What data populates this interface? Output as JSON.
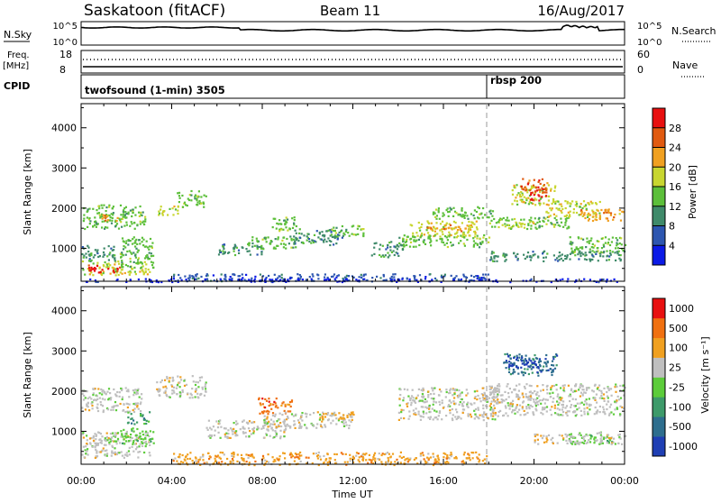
{
  "header": {
    "station": "Saskatoon (fitACF)",
    "beam": "Beam 11",
    "date": "16/Aug/2017"
  },
  "noise_panel": {
    "left_label": "N.Sky",
    "left_ticks": [
      "10^5",
      "10^0"
    ],
    "right_ticks": [
      "10^5",
      "10^0"
    ],
    "right_label": "N.Search"
  },
  "freq_panel": {
    "left_label_1": "Freq.",
    "left_label_2": "[MHz]",
    "left_ticks": [
      "18",
      "8"
    ],
    "right_ticks": [
      "60",
      "0"
    ],
    "right_label": "Nave"
  },
  "cpid_panel": {
    "label": "CPID",
    "entries": [
      {
        "time_hours": 0.0,
        "text": "twofsound (1-min) 3505"
      },
      {
        "time_hours": 18.0,
        "text": "rbsp 200"
      }
    ]
  },
  "x_axis": {
    "label": "Time UT",
    "range_hours": [
      0,
      24
    ],
    "tick_labels": [
      "00:00",
      "04:00",
      "08:00",
      "12:00",
      "16:00",
      "20:00",
      "00:00"
    ]
  },
  "y_axis": {
    "label": "Slant Range [km]",
    "range_km": [
      180,
      4600
    ],
    "tick_labels": [
      "1000",
      "2000",
      "3000",
      "4000"
    ]
  },
  "power_colorbar": {
    "label": "Power [dB]",
    "ticks": [
      "4",
      "8",
      "12",
      "16",
      "20",
      "24",
      "28"
    ],
    "colors": [
      "#0b1ae6",
      "#2d56b0",
      "#3f8a6a",
      "#5cbf3a",
      "#c8d630",
      "#f0a020",
      "#e05a10",
      "#e81010"
    ]
  },
  "velocity_colorbar": {
    "label": "Velocity [m s⁻¹]",
    "ticks": [
      "1000",
      "500",
      "100",
      "25",
      "-25",
      "-100",
      "-500",
      "-1000"
    ],
    "colors": [
      "#1f3fb4",
      "#2e6e8e",
      "#3d9a6a",
      "#5ccc3a",
      "#bfbfbf",
      "#f0a020",
      "#f07010",
      "#e81010"
    ]
  },
  "chart_data": [
    {
      "type": "heatmap",
      "name": "power",
      "xlabel": "Time UT",
      "ylabel": "Slant Range [km]",
      "colorbar_label": "Power [dB]",
      "ylim": [
        180,
        4600
      ],
      "xlim_hours": [
        0,
        24
      ],
      "regions": [
        {
          "t": [
            0.0,
            2.8
          ],
          "r": [
            1500,
            2100
          ],
          "level": 3
        },
        {
          "t": [
            0.8,
            1.6
          ],
          "r": [
            1700,
            1850
          ],
          "level": 5
        },
        {
          "t": [
            0.0,
            3.0
          ],
          "r": [
            350,
            700
          ],
          "level": 4
        },
        {
          "t": [
            0.3,
            1.8
          ],
          "r": [
            400,
            600
          ],
          "level": 7
        },
        {
          "t": [
            0.0,
            1.5
          ],
          "r": [
            700,
            1100
          ],
          "level": 2
        },
        {
          "t": [
            1.7,
            3.2
          ],
          "r": [
            500,
            1300
          ],
          "level": 3
        },
        {
          "t": [
            3.3,
            4.3
          ],
          "r": [
            1850,
            2100
          ],
          "level": 4
        },
        {
          "t": [
            4.2,
            5.5
          ],
          "r": [
            2050,
            2450
          ],
          "level": 3
        },
        {
          "t": [
            6.0,
            8.0
          ],
          "r": [
            850,
            1150
          ],
          "level": 2
        },
        {
          "t": [
            7.3,
            9.5
          ],
          "r": [
            1000,
            1300
          ],
          "level": 3
        },
        {
          "t": [
            8.4,
            9.6
          ],
          "r": [
            1450,
            1800
          ],
          "level": 3
        },
        {
          "t": [
            9.2,
            11.5
          ],
          "r": [
            1100,
            1500
          ],
          "level": 2
        },
        {
          "t": [
            11.0,
            12.5
          ],
          "r": [
            1300,
            1600
          ],
          "level": 3
        },
        {
          "t": [
            12.8,
            14.2
          ],
          "r": [
            800,
            1200
          ],
          "level": 2
        },
        {
          "t": [
            14.5,
            17.5
          ],
          "r": [
            1300,
            1700
          ],
          "level": 4
        },
        {
          "t": [
            15.0,
            17.0
          ],
          "r": [
            1450,
            1600
          ],
          "level": 5
        },
        {
          "t": [
            15.5,
            18.2
          ],
          "r": [
            1750,
            2050
          ],
          "level": 3
        },
        {
          "t": [
            14.0,
            18.0
          ],
          "r": [
            1050,
            1350
          ],
          "level": 3
        },
        {
          "t": [
            18.0,
            21.5
          ],
          "r": [
            1500,
            1800
          ],
          "level": 3
        },
        {
          "t": [
            18.5,
            20.0
          ],
          "r": [
            1550,
            1700
          ],
          "level": 4
        },
        {
          "t": [
            19.0,
            21.0
          ],
          "r": [
            2100,
            2600
          ],
          "level": 4
        },
        {
          "t": [
            19.4,
            20.6
          ],
          "r": [
            2400,
            2750
          ],
          "level": 6
        },
        {
          "t": [
            19.8,
            20.5
          ],
          "r": [
            2200,
            2500
          ],
          "level": 7
        },
        {
          "t": [
            20.5,
            23.0
          ],
          "r": [
            1800,
            2200
          ],
          "level": 4
        },
        {
          "t": [
            22.0,
            24.0
          ],
          "r": [
            1700,
            2000
          ],
          "level": 5
        },
        {
          "t": [
            21.5,
            24.0
          ],
          "r": [
            900,
            1300
          ],
          "level": 3
        },
        {
          "t": [
            18.0,
            24.0
          ],
          "r": [
            700,
            950
          ],
          "level": 2
        },
        {
          "t": [
            4.0,
            18.0
          ],
          "r": [
            200,
            380
          ],
          "level": 1
        },
        {
          "t": [
            0.0,
            24.0
          ],
          "r": [
            180,
            260
          ],
          "level": 0
        }
      ]
    },
    {
      "type": "heatmap",
      "name": "velocity",
      "xlabel": "Time UT",
      "ylabel": "Slant Range [km]",
      "colorbar_label": "Velocity [m s⁻¹]",
      "ylim": [
        180,
        4600
      ],
      "xlim_hours": [
        0,
        24
      ],
      "regions": [
        {
          "t": [
            0.0,
            2.8
          ],
          "r": [
            1500,
            2100
          ],
          "level": 4
        },
        {
          "t": [
            0.0,
            3.0
          ],
          "r": [
            350,
            1000
          ],
          "level": 4
        },
        {
          "t": [
            1.0,
            3.2
          ],
          "r": [
            700,
            1100
          ],
          "level": 3
        },
        {
          "t": [
            2.0,
            3.0
          ],
          "r": [
            1200,
            1500
          ],
          "level": 2
        },
        {
          "t": [
            3.3,
            5.5
          ],
          "r": [
            1850,
            2400
          ],
          "level": 4
        },
        {
          "t": [
            5.5,
            9.0
          ],
          "r": [
            850,
            1300
          ],
          "level": 4
        },
        {
          "t": [
            7.8,
            9.3
          ],
          "r": [
            1450,
            1850
          ],
          "level": 6
        },
        {
          "t": [
            8.0,
            12.0
          ],
          "r": [
            1100,
            1500
          ],
          "level": 4
        },
        {
          "t": [
            10.5,
            12.0
          ],
          "r": [
            1300,
            1500
          ],
          "level": 5
        },
        {
          "t": [
            4.0,
            18.0
          ],
          "r": [
            180,
            500
          ],
          "level": 5
        },
        {
          "t": [
            14.0,
            18.5
          ],
          "r": [
            1300,
            2100
          ],
          "level": 4
        },
        {
          "t": [
            18.0,
            24.0
          ],
          "r": [
            1400,
            2200
          ],
          "level": 4
        },
        {
          "t": [
            18.6,
            21.0
          ],
          "r": [
            2400,
            2950
          ],
          "level": 1
        },
        {
          "t": [
            18.8,
            20.2
          ],
          "r": [
            2600,
            2900
          ],
          "level": 0
        },
        {
          "t": [
            21.5,
            23.5
          ],
          "r": [
            700,
            1000
          ],
          "level": 3
        },
        {
          "t": [
            20.0,
            24.0
          ],
          "r": [
            700,
            950
          ],
          "level": 4
        }
      ]
    }
  ]
}
